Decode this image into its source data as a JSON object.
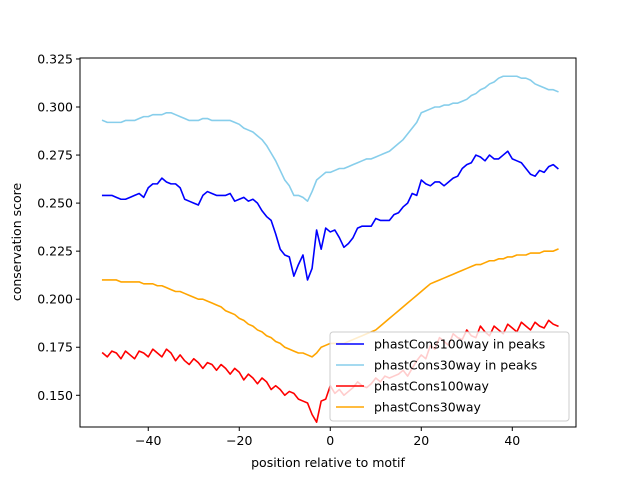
{
  "chart_data": {
    "type": "line",
    "title": "",
    "xlabel": "position relative to motif",
    "ylabel": "conservation score",
    "xlim": [
      -55,
      54
    ],
    "ylim": [
      0.1335,
      0.3255
    ],
    "xticks": [
      -40,
      -20,
      0,
      20,
      40
    ],
    "xtick_labels": [
      "−40",
      "−20",
      "0",
      "20",
      "40"
    ],
    "yticks": [
      0.15,
      0.175,
      0.2,
      0.225,
      0.25,
      0.275,
      0.3,
      0.325
    ],
    "ytick_labels": [
      "0.150",
      "0.175",
      "0.200",
      "0.225",
      "0.250",
      "0.275",
      "0.300",
      "0.325"
    ],
    "grid": false,
    "legend_position": "lower-right",
    "x_start": -50,
    "x_step": 1,
    "series": [
      {
        "name": "phastCons100way in peaks",
        "color": "#0000ff",
        "values": [
          0.254,
          0.254,
          0.254,
          0.253,
          0.252,
          0.252,
          0.253,
          0.254,
          0.255,
          0.253,
          0.258,
          0.26,
          0.26,
          0.263,
          0.261,
          0.26,
          0.26,
          0.258,
          0.252,
          0.251,
          0.25,
          0.249,
          0.254,
          0.256,
          0.255,
          0.254,
          0.254,
          0.254,
          0.255,
          0.251,
          0.252,
          0.253,
          0.251,
          0.252,
          0.25,
          0.246,
          0.243,
          0.241,
          0.234,
          0.226,
          0.223,
          0.222,
          0.212,
          0.218,
          0.223,
          0.21,
          0.216,
          0.236,
          0.226,
          0.237,
          0.235,
          0.236,
          0.232,
          0.227,
          0.229,
          0.232,
          0.237,
          0.238,
          0.238,
          0.238,
          0.242,
          0.241,
          0.241,
          0.241,
          0.244,
          0.245,
          0.248,
          0.25,
          0.255,
          0.254,
          0.262,
          0.26,
          0.259,
          0.261,
          0.261,
          0.259,
          0.261,
          0.263,
          0.264,
          0.268,
          0.27,
          0.271,
          0.275,
          0.274,
          0.272,
          0.275,
          0.273,
          0.273,
          0.275,
          0.277,
          0.273,
          0.272,
          0.271,
          0.268,
          0.265,
          0.264,
          0.267,
          0.266,
          0.269,
          0.27,
          0.268
        ]
      },
      {
        "name": "phastCons30way in peaks",
        "color": "#87ceeb",
        "values": [
          0.293,
          0.292,
          0.292,
          0.292,
          0.292,
          0.293,
          0.293,
          0.293,
          0.294,
          0.295,
          0.295,
          0.296,
          0.296,
          0.296,
          0.297,
          0.297,
          0.296,
          0.295,
          0.294,
          0.293,
          0.293,
          0.293,
          0.294,
          0.294,
          0.293,
          0.293,
          0.293,
          0.293,
          0.293,
          0.292,
          0.291,
          0.289,
          0.288,
          0.287,
          0.285,
          0.283,
          0.28,
          0.276,
          0.272,
          0.267,
          0.262,
          0.259,
          0.254,
          0.254,
          0.253,
          0.251,
          0.256,
          0.262,
          0.264,
          0.266,
          0.266,
          0.267,
          0.268,
          0.268,
          0.269,
          0.27,
          0.271,
          0.272,
          0.273,
          0.273,
          0.274,
          0.275,
          0.276,
          0.277,
          0.279,
          0.281,
          0.283,
          0.286,
          0.289,
          0.292,
          0.297,
          0.298,
          0.299,
          0.3,
          0.3,
          0.301,
          0.301,
          0.302,
          0.302,
          0.303,
          0.304,
          0.306,
          0.307,
          0.309,
          0.31,
          0.312,
          0.313,
          0.315,
          0.316,
          0.316,
          0.316,
          0.316,
          0.315,
          0.315,
          0.314,
          0.312,
          0.311,
          0.31,
          0.309,
          0.309,
          0.308
        ]
      },
      {
        "name": "phastCons100way",
        "color": "#ff0000",
        "values": [
          0.172,
          0.17,
          0.173,
          0.172,
          0.169,
          0.173,
          0.171,
          0.169,
          0.173,
          0.172,
          0.17,
          0.174,
          0.172,
          0.17,
          0.174,
          0.172,
          0.168,
          0.171,
          0.168,
          0.166,
          0.169,
          0.167,
          0.164,
          0.167,
          0.166,
          0.163,
          0.166,
          0.164,
          0.161,
          0.164,
          0.162,
          0.158,
          0.161,
          0.159,
          0.156,
          0.159,
          0.157,
          0.153,
          0.155,
          0.153,
          0.15,
          0.152,
          0.151,
          0.148,
          0.147,
          0.146,
          0.14,
          0.136,
          0.147,
          0.148,
          0.155,
          0.151,
          0.153,
          0.15,
          0.152,
          0.154,
          0.157,
          0.155,
          0.154,
          0.156,
          0.159,
          0.157,
          0.16,
          0.159,
          0.16,
          0.161,
          0.163,
          0.16,
          0.164,
          0.168,
          0.171,
          0.169,
          0.176,
          0.174,
          0.18,
          0.178,
          0.176,
          0.182,
          0.18,
          0.179,
          0.184,
          0.181,
          0.18,
          0.186,
          0.183,
          0.181,
          0.186,
          0.184,
          0.182,
          0.187,
          0.185,
          0.183,
          0.188,
          0.186,
          0.184,
          0.188,
          0.186,
          0.185,
          0.189,
          0.187,
          0.186
        ]
      },
      {
        "name": "phastCons30way",
        "color": "#ffa500",
        "values": [
          0.21,
          0.21,
          0.21,
          0.21,
          0.209,
          0.209,
          0.209,
          0.209,
          0.209,
          0.208,
          0.208,
          0.208,
          0.207,
          0.207,
          0.206,
          0.205,
          0.204,
          0.204,
          0.203,
          0.202,
          0.201,
          0.2,
          0.2,
          0.199,
          0.198,
          0.197,
          0.196,
          0.194,
          0.193,
          0.192,
          0.19,
          0.189,
          0.187,
          0.186,
          0.184,
          0.183,
          0.181,
          0.18,
          0.178,
          0.177,
          0.175,
          0.174,
          0.173,
          0.172,
          0.172,
          0.171,
          0.17,
          0.172,
          0.175,
          0.176,
          0.177,
          0.177,
          0.177,
          0.177,
          0.178,
          0.179,
          0.18,
          0.181,
          0.182,
          0.183,
          0.184,
          0.186,
          0.188,
          0.19,
          0.192,
          0.194,
          0.196,
          0.198,
          0.2,
          0.202,
          0.204,
          0.206,
          0.208,
          0.209,
          0.21,
          0.211,
          0.212,
          0.213,
          0.214,
          0.215,
          0.216,
          0.217,
          0.218,
          0.218,
          0.219,
          0.22,
          0.22,
          0.221,
          0.221,
          0.222,
          0.222,
          0.223,
          0.223,
          0.223,
          0.224,
          0.224,
          0.224,
          0.225,
          0.225,
          0.225,
          0.226
        ]
      }
    ]
  }
}
